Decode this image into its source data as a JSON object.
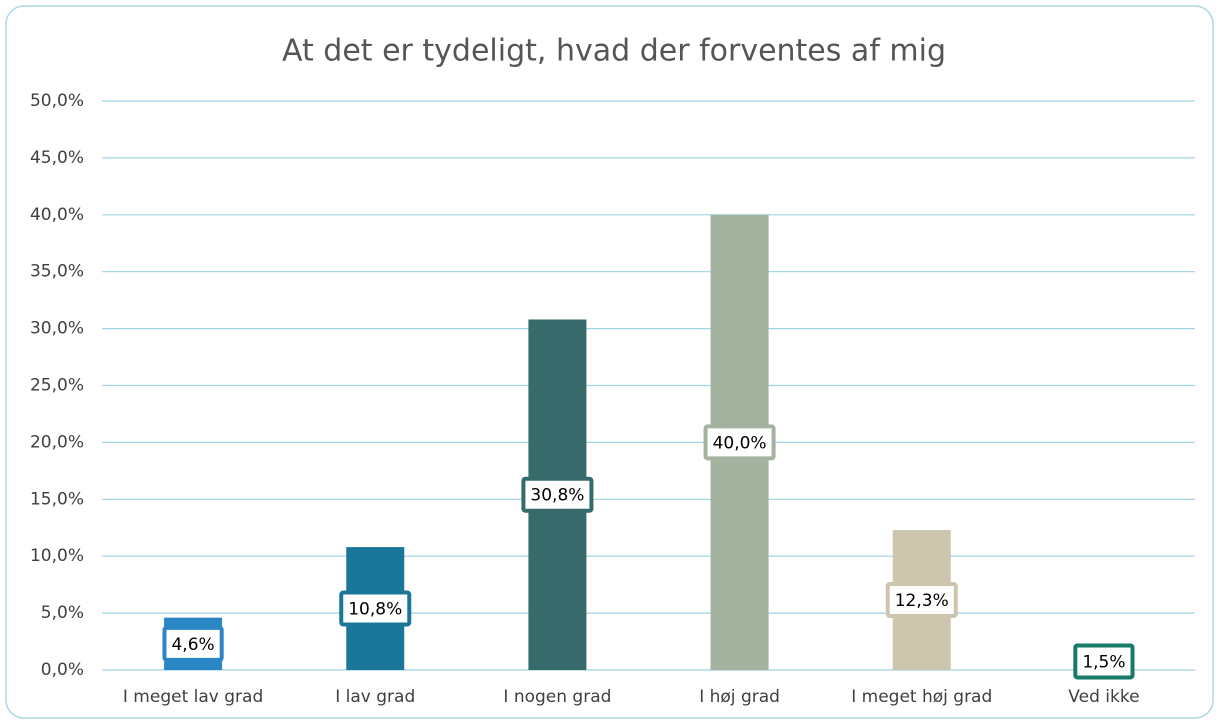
{
  "chart_data": {
    "type": "bar",
    "title": "At det er tydeligt, hvad der forventes af mig",
    "categories": [
      "I meget lav grad",
      "I lav grad",
      "I nogen grad",
      "I høj grad",
      "I meget høj grad",
      "Ved ikke"
    ],
    "values": [
      4.6,
      10.8,
      30.8,
      40.0,
      12.3,
      1.5
    ],
    "value_labels": [
      "4,6%",
      "10,8%",
      "30,8%",
      "40,0%",
      "12,3%",
      "1,5%"
    ],
    "colors": [
      "#2b86c5",
      "#1b7799",
      "#376a6a",
      "#a3b3a0",
      "#cdc5ad",
      "#177a6a"
    ],
    "ylim": [
      0,
      50
    ],
    "yticks": [
      {
        "value": 0,
        "label": "0,0%"
      },
      {
        "value": 5,
        "label": "5,0%"
      },
      {
        "value": 10,
        "label": "10,0%"
      },
      {
        "value": 15,
        "label": "15,0%"
      },
      {
        "value": 20,
        "label": "20,0%"
      },
      {
        "value": 25,
        "label": "25,0%"
      },
      {
        "value": 30,
        "label": "30,0%"
      },
      {
        "value": 35,
        "label": "35,0%"
      },
      {
        "value": 40,
        "label": "40,0%"
      },
      {
        "value": 45,
        "label": "45,0%"
      },
      {
        "value": 50,
        "label": "50,0%"
      }
    ],
    "grid": true
  }
}
